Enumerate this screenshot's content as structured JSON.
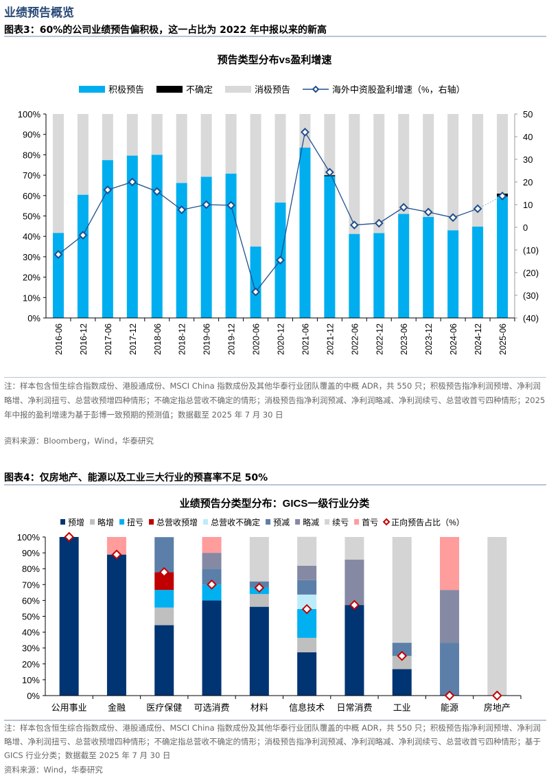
{
  "section_title": "业绩预告概览",
  "figure3": {
    "caption": "图表3：60%的公司业绩预告偏积极，这一占比为 2022 年中报以来的新高",
    "note": "注：样本包含恒生综合指数成份、港股通成份、MSCI China 指数成份及其他华泰行业团队覆盖的中概 ADR，共 550 只；积极预告指净利润预增、净利润略增、净利润扭亏、总营收预增四种情形；不确定指总营收不确定的情形；消极预告指净利润预减、净利润略减、净利润续亏、总营收首亏四种情形；2025 年中报的盈利增速为基于彭博一致预期的预测值；数据截至 2025 年 7 月 30 日",
    "source": "资料来源：Bloomberg，Wind，华泰研究"
  },
  "figure4": {
    "caption": "图表4：仅房地产、能源以及工业三大行业的预喜率不足 50%",
    "note": "注：样本包含恒生综合指数成份、港股通成份、MSCI China 指数成份及其他华泰行业团队覆盖的中概 ADR，共 550 只；积极预告指净利润预增、净利润略增、净利润扭亏、总营收预增四种情形；不确定指总营收不确定的情形；消极预告指净利润预减、净利润略减、净利润续亏、总营收首亏四种情形；基于 GICS 行业分类；数据截至 2025 年 7 月 30 日",
    "source": "资料来源：Wind，华泰研究"
  },
  "chart_data": [
    {
      "type": "bar",
      "stacked": true,
      "title": "预告类型分布vs盈利增速",
      "categories": [
        "2016-06",
        "2016-12",
        "2017-06",
        "2017-12",
        "2018-06",
        "2018-12",
        "2019-06",
        "2019-12",
        "2020-06",
        "2020-12",
        "2021-06",
        "2021-12",
        "2022-06",
        "2022-12",
        "2023-06",
        "2023-12",
        "2024-06",
        "2024-12",
        "2025-06"
      ],
      "series": [
        {
          "name": "积极预告",
          "color": "#00aeef",
          "values": [
            41.7,
            60.4,
            77.4,
            79.6,
            80.0,
            66.2,
            69.2,
            70.8,
            35.0,
            56.6,
            83.5,
            69.5,
            41.2,
            41.6,
            51.0,
            49.5,
            43.0,
            44.8,
            59.5
          ]
        },
        {
          "name": "不确定",
          "color": "#000000",
          "values": [
            0,
            0,
            0,
            0,
            0,
            0,
            0,
            0,
            0,
            0,
            0,
            0.5,
            0,
            0,
            0,
            0,
            0,
            0,
            1.5
          ]
        },
        {
          "name": "消极预告",
          "color": "#d9d9d9",
          "values": [
            58.3,
            39.6,
            22.6,
            20.4,
            20.0,
            33.8,
            30.8,
            29.2,
            65.0,
            43.4,
            16.5,
            30.0,
            58.8,
            58.4,
            49.0,
            50.5,
            57.0,
            55.2,
            39.0
          ]
        },
        {
          "name": "海外中资股盈利增速（%，右轴）",
          "type": "line",
          "axis": "right",
          "color": "#1f4e8c",
          "values": [
            -12,
            -3.5,
            16.5,
            20,
            15.8,
            7.7,
            10,
            9.7,
            -28.5,
            -14.5,
            42,
            24.3,
            1,
            1.8,
            8.8,
            6.7,
            4.3,
            8.2,
            13.8
          ]
        }
      ],
      "yleft": {
        "range": [
          0,
          100
        ],
        "ticks": [
          "0%",
          "10%",
          "20%",
          "30%",
          "40%",
          "50%",
          "60%",
          "70%",
          "80%",
          "90%",
          "100%"
        ]
      },
      "yright": {
        "range": [
          -40,
          50
        ],
        "ticks": [
          "(40)",
          "(30)",
          "(20)",
          "(10)",
          "0",
          "10",
          "20",
          "30",
          "40",
          "50"
        ]
      },
      "legend": "top"
    },
    {
      "type": "bar",
      "stacked": true,
      "title": "业绩预告分类型分布：GICS一级行业分类",
      "categories": [
        "公用事业",
        "金融",
        "医疗保健",
        "可选消费",
        "材料",
        "信息技术",
        "日常消费",
        "工业",
        "能源",
        "房地产"
      ],
      "series": [
        {
          "name": "预增",
          "color": "#003473",
          "values": [
            100,
            88.9,
            44.4,
            60,
            56,
            27.3,
            57.1,
            16.7,
            0,
            0
          ]
        },
        {
          "name": "略增",
          "color": "#bfbfbf",
          "values": [
            0,
            0,
            11.1,
            0,
            8,
            9.1,
            0,
            8.3,
            0,
            0
          ]
        },
        {
          "name": "扭亏",
          "color": "#00b0f0",
          "values": [
            0,
            0,
            11.1,
            10,
            4,
            18.2,
            0,
            0,
            0,
            0
          ]
        },
        {
          "name": "总营收预增",
          "color": "#c00000",
          "values": [
            0,
            0,
            11.1,
            0,
            0,
            0,
            0,
            0,
            0,
            0
          ]
        },
        {
          "name": "总营收不确定",
          "color": "#bdebf9",
          "values": [
            0,
            0,
            0,
            0,
            0,
            9.1,
            0,
            0,
            0,
            0
          ]
        },
        {
          "name": "预减",
          "color": "#5b7fa8",
          "values": [
            0,
            0,
            22.2,
            10,
            4,
            9.1,
            0,
            8.3,
            33.3,
            0
          ]
        },
        {
          "name": "略减",
          "color": "#8589a3",
          "values": [
            0,
            0,
            0,
            10,
            0,
            9.1,
            28.6,
            0,
            33.3,
            0
          ]
        },
        {
          "name": "续亏",
          "color": "#d4d4d4",
          "values": [
            0,
            0,
            0,
            0,
            28,
            18.2,
            14.3,
            66.7,
            0,
            100
          ]
        },
        {
          "name": "首亏",
          "color": "#ff9c9c",
          "values": [
            0,
            11.1,
            0,
            10,
            0,
            0,
            0,
            0,
            33.4,
            0
          ]
        },
        {
          "name": "正向预告占比（%）",
          "type": "scatter",
          "marker": "diamond",
          "color": "#c00000",
          "values": [
            100,
            88.9,
            77.8,
            70,
            68,
            54.5,
            57.1,
            25,
            0,
            0
          ]
        }
      ],
      "yleft": {
        "range": [
          0,
          100
        ],
        "ticks": [
          "0%",
          "10%",
          "20%",
          "30%",
          "40%",
          "50%",
          "60%",
          "70%",
          "80%",
          "90%",
          "100%"
        ]
      },
      "legend": "top"
    }
  ]
}
